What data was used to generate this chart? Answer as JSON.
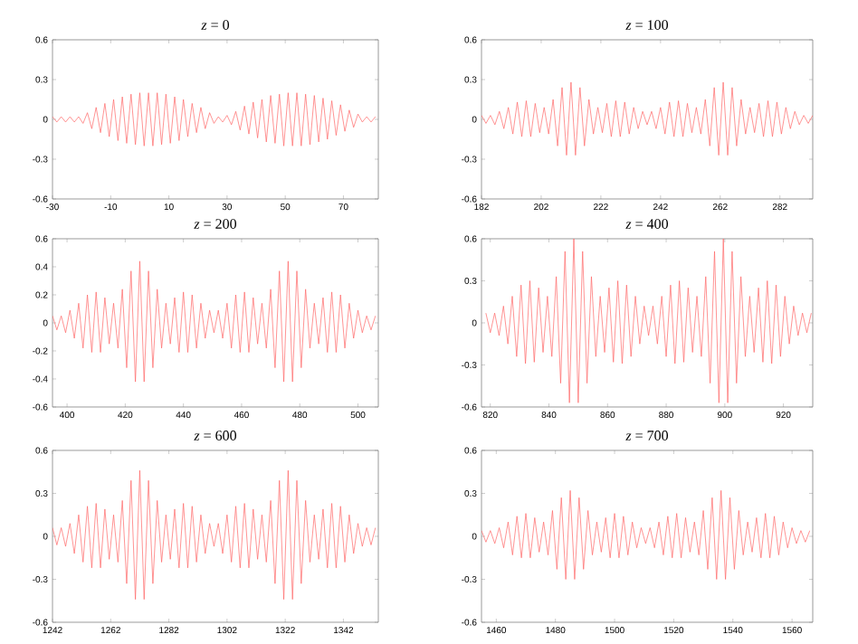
{
  "chart_data": [
    {
      "type": "line",
      "title": "*z* = 0",
      "color": "#ff6666",
      "xlim": [
        -30,
        82
      ],
      "xticks": [
        -30,
        -10,
        10,
        30,
        50,
        70
      ],
      "ylim": [
        -0.6,
        0.6
      ],
      "yticks": [
        -0.6,
        -0.3,
        0,
        0.3,
        0.6
      ],
      "x": [
        -30,
        -28.5,
        -27,
        -25.5,
        -24,
        -22.5,
        -21,
        -19.5,
        -18,
        -16.5,
        -15,
        -13.5,
        -12,
        -10.5,
        -9,
        -7.5,
        -6,
        -4.5,
        -3,
        -1.5,
        0,
        1.5,
        3,
        4.5,
        6,
        7.5,
        9,
        10.5,
        12,
        13.5,
        15,
        16.5,
        18,
        19.5,
        21,
        22.5,
        24,
        25.5,
        27,
        28.5,
        30,
        31.5,
        33,
        34.5,
        36,
        37.5,
        39,
        40.5,
        42,
        43.5,
        45,
        46.5,
        48,
        49.5,
        51,
        52.5,
        54,
        55.5,
        57,
        58.5,
        60,
        61.5,
        63,
        64.5,
        66,
        67.5,
        69,
        70.5,
        72,
        73.5,
        75,
        76.5,
        78,
        79.5,
        81
      ],
      "values": [
        0.02,
        -0.02,
        0.02,
        -0.02,
        0.02,
        -0.02,
        0.02,
        -0.03,
        0.05,
        -0.07,
        0.09,
        -0.1,
        0.12,
        -0.13,
        0.15,
        -0.16,
        0.17,
        -0.18,
        0.19,
        -0.19,
        0.2,
        -0.2,
        0.2,
        -0.2,
        0.2,
        -0.19,
        0.19,
        -0.18,
        0.17,
        -0.16,
        0.15,
        -0.13,
        0.12,
        -0.1,
        0.09,
        -0.07,
        0.05,
        -0.03,
        0.02,
        -0.02,
        0.03,
        -0.04,
        0.06,
        -0.08,
        0.1,
        -0.11,
        0.13,
        -0.14,
        0.15,
        -0.17,
        0.18,
        -0.18,
        0.19,
        -0.2,
        0.2,
        -0.2,
        0.2,
        -0.2,
        0.19,
        -0.19,
        0.18,
        -0.17,
        0.16,
        -0.15,
        0.14,
        -0.12,
        0.11,
        -0.09,
        0.07,
        -0.06,
        0.04,
        -0.02,
        0.02,
        -0.02,
        0.02
      ]
    },
    {
      "type": "line",
      "title": "*z* = 100",
      "color": "#ff6666",
      "xlim": [
        182,
        293
      ],
      "xticks": [
        182,
        202,
        222,
        242,
        262,
        282
      ],
      "ylim": [
        -0.6,
        0.6
      ],
      "yticks": [
        -0.6,
        -0.3,
        0,
        0.3,
        0.6
      ],
      "x": [
        182,
        183.5,
        185,
        186.5,
        188,
        189.5,
        191,
        192.5,
        194,
        195.5,
        197,
        198.5,
        200,
        201.5,
        203,
        204.5,
        206,
        207.5,
        209,
        210.5,
        212,
        213.5,
        215,
        216.5,
        218,
        219.5,
        221,
        222.5,
        224,
        225.5,
        227,
        228.5,
        230,
        231.5,
        233,
        234.5,
        236,
        237.5,
        239,
        240.5,
        242,
        243.5,
        245,
        246.5,
        248,
        249.5,
        251,
        252.5,
        254,
        255.5,
        257,
        258.5,
        260,
        261.5,
        263,
        264.5,
        266,
        267.5,
        269,
        270.5,
        272,
        273.5,
        275,
        276.5,
        278,
        279.5,
        281,
        282.5,
        284,
        285.5,
        287,
        288.5,
        290,
        291.5,
        293
      ],
      "values": [
        0.03,
        -0.03,
        0.03,
        -0.04,
        0.06,
        -0.07,
        0.09,
        -0.11,
        0.13,
        -0.13,
        0.14,
        -0.13,
        0.12,
        -0.1,
        0.09,
        -0.11,
        0.15,
        -0.2,
        0.24,
        -0.27,
        0.28,
        -0.27,
        0.24,
        -0.2,
        0.15,
        -0.11,
        0.09,
        -0.1,
        0.12,
        -0.13,
        0.14,
        -0.13,
        0.13,
        -0.11,
        0.09,
        -0.07,
        0.06,
        -0.04,
        0.06,
        -0.07,
        0.09,
        -0.11,
        0.13,
        -0.13,
        0.14,
        -0.13,
        0.12,
        -0.1,
        0.09,
        -0.11,
        0.15,
        -0.2,
        0.24,
        -0.27,
        0.28,
        -0.27,
        0.24,
        -0.2,
        0.15,
        -0.11,
        0.09,
        -0.1,
        0.12,
        -0.13,
        0.14,
        -0.13,
        0.13,
        -0.11,
        0.09,
        -0.07,
        0.06,
        -0.04,
        0.03,
        -0.03,
        0.03
      ]
    },
    {
      "type": "line",
      "title": "*z* = 200",
      "color": "#ff6666",
      "xlim": [
        395,
        507
      ],
      "xticks": [
        400,
        420,
        440,
        460,
        480,
        500
      ],
      "ylim": [
        -0.6,
        0.6
      ],
      "yticks": [
        -0.6,
        -0.4,
        -0.2,
        0,
        0.2,
        0.4,
        0.6
      ],
      "x": [
        395,
        396.5,
        398,
        399.5,
        401,
        402.5,
        404,
        405.5,
        407,
        408.5,
        410,
        411.5,
        413,
        414.5,
        416,
        417.5,
        419,
        420.5,
        422,
        423.5,
        425,
        426.5,
        428,
        429.5,
        431,
        432.5,
        434,
        435.5,
        437,
        438.5,
        440,
        441.5,
        443,
        444.5,
        446,
        447.5,
        449,
        450.5,
        452,
        453.5,
        455,
        456.5,
        458,
        459.5,
        461,
        462.5,
        464,
        465.5,
        467,
        468.5,
        470,
        471.5,
        473,
        474.5,
        476,
        477.5,
        479,
        480.5,
        482,
        483.5,
        485,
        486.5,
        488,
        489.5,
        491,
        492.5,
        494,
        495.5,
        497,
        498.5,
        500,
        501.5,
        503,
        504.5,
        506
      ],
      "values": [
        0.05,
        -0.05,
        0.05,
        -0.07,
        0.09,
        -0.11,
        0.14,
        -0.18,
        0.2,
        -0.21,
        0.22,
        -0.21,
        0.18,
        -0.15,
        0.14,
        -0.18,
        0.24,
        -0.32,
        0.37,
        -0.42,
        0.44,
        -0.42,
        0.37,
        -0.32,
        0.24,
        -0.18,
        0.14,
        -0.15,
        0.18,
        -0.21,
        0.22,
        -0.21,
        0.2,
        -0.18,
        0.14,
        -0.11,
        0.09,
        -0.07,
        0.09,
        -0.11,
        0.14,
        -0.18,
        0.2,
        -0.21,
        0.22,
        -0.21,
        0.18,
        -0.15,
        0.14,
        -0.18,
        0.24,
        -0.32,
        0.37,
        -0.42,
        0.44,
        -0.42,
        0.37,
        -0.32,
        0.24,
        -0.18,
        0.14,
        -0.15,
        0.18,
        -0.21,
        0.22,
        -0.21,
        0.2,
        -0.18,
        0.14,
        -0.11,
        0.09,
        -0.07,
        0.05,
        -0.05,
        0.05
      ]
    },
    {
      "type": "line",
      "title": "*z* = 400",
      "color": "#ff6666",
      "xlim": [
        817,
        930
      ],
      "xticks": [
        820,
        840,
        860,
        880,
        900,
        920
      ],
      "ylim": [
        -0.6,
        0.6
      ],
      "yticks": [
        -0.6,
        -0.3,
        0,
        0.3,
        0.6
      ],
      "x": [
        818.5,
        820,
        821.5,
        823,
        824.5,
        826,
        827.5,
        829,
        830.5,
        832,
        833.5,
        835,
        836.5,
        838,
        839.5,
        841,
        842.5,
        844,
        845.5,
        847,
        848.5,
        850,
        851.5,
        853,
        854.5,
        856,
        857.5,
        859,
        860.5,
        862,
        863.5,
        865,
        866.5,
        868,
        869.5,
        871,
        872.5,
        874,
        875.5,
        877,
        878.5,
        880,
        881.5,
        883,
        884.5,
        886,
        887.5,
        889,
        890.5,
        892,
        893.5,
        895,
        896.5,
        898,
        899.5,
        901,
        902.5,
        904,
        905.5,
        907,
        908.5,
        910,
        911.5,
        913,
        914.5,
        916,
        917.5,
        919,
        920.5,
        922,
        923.5,
        925,
        926.5,
        928,
        929.5
      ],
      "values": [
        0.07,
        -0.07,
        0.07,
        -0.09,
        0.12,
        -0.15,
        0.19,
        -0.24,
        0.27,
        -0.29,
        0.3,
        -0.28,
        0.25,
        -0.21,
        0.19,
        -0.24,
        0.33,
        -0.43,
        0.51,
        -0.57,
        0.6,
        -0.57,
        0.51,
        -0.43,
        0.33,
        -0.24,
        0.19,
        -0.21,
        0.25,
        -0.28,
        0.3,
        -0.29,
        0.27,
        -0.24,
        0.19,
        -0.15,
        0.12,
        -0.09,
        0.12,
        -0.15,
        0.19,
        -0.24,
        0.27,
        -0.29,
        0.3,
        -0.28,
        0.25,
        -0.21,
        0.19,
        -0.24,
        0.33,
        -0.43,
        0.51,
        -0.57,
        0.6,
        -0.57,
        0.51,
        -0.43,
        0.33,
        -0.24,
        0.19,
        -0.21,
        0.25,
        -0.28,
        0.3,
        -0.29,
        0.27,
        -0.24,
        0.19,
        -0.15,
        0.12,
        -0.09,
        0.07,
        -0.07,
        0.07
      ]
    },
    {
      "type": "line",
      "title": "*z* = 600",
      "color": "#ff6666",
      "xlim": [
        1242,
        1354
      ],
      "xticks": [
        1242,
        1262,
        1282,
        1302,
        1322,
        1342
      ],
      "ylim": [
        -0.6,
        0.6
      ],
      "yticks": [
        -0.6,
        -0.3,
        0,
        0.3,
        0.6
      ],
      "x": [
        1242,
        1243.5,
        1245,
        1246.5,
        1248,
        1249.5,
        1251,
        1252.5,
        1254,
        1255.5,
        1257,
        1258.5,
        1260,
        1261.5,
        1263,
        1264.5,
        1266,
        1267.5,
        1269,
        1270.5,
        1272,
        1273.5,
        1275,
        1276.5,
        1278,
        1279.5,
        1281,
        1282.5,
        1284,
        1285.5,
        1287,
        1288.5,
        1290,
        1291.5,
        1293,
        1294.5,
        1296,
        1297.5,
        1299,
        1300.5,
        1302,
        1303.5,
        1305,
        1306.5,
        1308,
        1309.5,
        1311,
        1312.5,
        1314,
        1315.5,
        1317,
        1318.5,
        1320,
        1321.5,
        1323,
        1324.5,
        1326,
        1327.5,
        1329,
        1330.5,
        1332,
        1333.5,
        1335,
        1336.5,
        1338,
        1339.5,
        1341,
        1342.5,
        1344,
        1345.5,
        1347,
        1348.5,
        1350,
        1351.5,
        1353
      ],
      "values": [
        0.06,
        -0.06,
        0.06,
        -0.07,
        0.09,
        -0.12,
        0.15,
        -0.18,
        0.21,
        -0.22,
        0.23,
        -0.22,
        0.19,
        -0.16,
        0.15,
        -0.18,
        0.25,
        -0.33,
        0.39,
        -0.44,
        0.46,
        -0.44,
        0.39,
        -0.33,
        0.25,
        -0.18,
        0.15,
        -0.16,
        0.19,
        -0.22,
        0.23,
        -0.22,
        0.21,
        -0.18,
        0.15,
        -0.12,
        0.09,
        -0.07,
        0.09,
        -0.12,
        0.15,
        -0.18,
        0.21,
        -0.22,
        0.23,
        -0.22,
        0.19,
        -0.16,
        0.15,
        -0.18,
        0.25,
        -0.33,
        0.39,
        -0.44,
        0.46,
        -0.44,
        0.39,
        -0.33,
        0.25,
        -0.18,
        0.15,
        -0.16,
        0.19,
        -0.22,
        0.23,
        -0.22,
        0.21,
        -0.18,
        0.15,
        -0.12,
        0.09,
        -0.07,
        0.06,
        -0.06,
        0.06
      ]
    },
    {
      "type": "line",
      "title": "*z* = 700",
      "color": "#ff6666",
      "xlim": [
        1455,
        1567
      ],
      "xticks": [
        1460,
        1480,
        1500,
        1520,
        1540,
        1560
      ],
      "ylim": [
        -0.6,
        0.6
      ],
      "yticks": [
        -0.6,
        -0.3,
        0,
        0.3,
        0.6
      ],
      "x": [
        1455,
        1456.5,
        1458,
        1459.5,
        1461,
        1462.5,
        1464,
        1465.5,
        1467,
        1468.5,
        1470,
        1471.5,
        1473,
        1474.5,
        1476,
        1477.5,
        1479,
        1480.5,
        1482,
        1483.5,
        1485,
        1486.5,
        1488,
        1489.5,
        1491,
        1492.5,
        1494,
        1495.5,
        1497,
        1498.5,
        1500,
        1501.5,
        1503,
        1504.5,
        1506,
        1507.5,
        1509,
        1510.5,
        1512,
        1513.5,
        1515,
        1516.5,
        1518,
        1519.5,
        1521,
        1522.5,
        1524,
        1525.5,
        1527,
        1528.5,
        1530,
        1531.5,
        1533,
        1534.5,
        1536,
        1537.5,
        1539,
        1540.5,
        1542,
        1543.5,
        1545,
        1546.5,
        1548,
        1549.5,
        1551,
        1552.5,
        1554,
        1555.5,
        1557,
        1558.5,
        1560,
        1561.5,
        1563,
        1564.5,
        1566
      ],
      "values": [
        0.04,
        -0.04,
        0.04,
        -0.05,
        0.06,
        -0.08,
        0.1,
        -0.13,
        0.14,
        -0.15,
        0.16,
        -0.15,
        0.13,
        -0.11,
        0.1,
        -0.13,
        0.18,
        -0.23,
        0.27,
        -0.3,
        0.32,
        -0.3,
        0.27,
        -0.23,
        0.18,
        -0.13,
        0.1,
        -0.11,
        0.13,
        -0.15,
        0.16,
        -0.15,
        0.14,
        -0.13,
        0.1,
        -0.08,
        0.06,
        -0.05,
        0.06,
        -0.08,
        0.1,
        -0.13,
        0.14,
        -0.15,
        0.16,
        -0.15,
        0.13,
        -0.11,
        0.1,
        -0.13,
        0.18,
        -0.23,
        0.27,
        -0.3,
        0.32,
        -0.3,
        0.27,
        -0.23,
        0.18,
        -0.13,
        0.1,
        -0.11,
        0.13,
        -0.15,
        0.16,
        -0.15,
        0.14,
        -0.13,
        0.1,
        -0.08,
        0.06,
        -0.05,
        0.04,
        -0.04,
        0.04
      ]
    }
  ]
}
